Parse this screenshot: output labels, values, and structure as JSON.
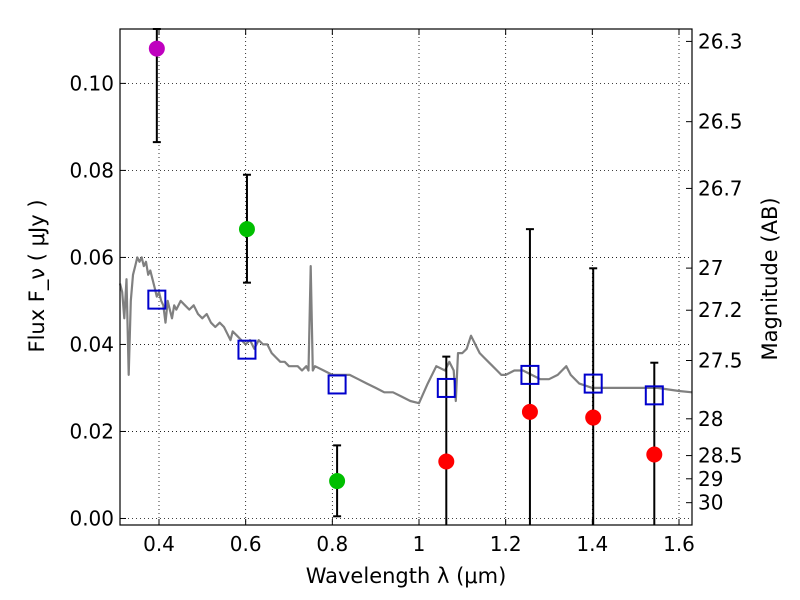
{
  "chart_data": {
    "type": "scatter",
    "xlabel": "Wavelength  λ (μm)",
    "ylabel_left": "Flux  F_ν  ( μJy )",
    "ylabel_right": "Magnitude (AB)",
    "xlim": [
      0.31,
      1.63
    ],
    "ylim": [
      -0.0015,
      0.1125
    ],
    "xticks": [
      {
        "value": 0.4,
        "label": "0.4"
      },
      {
        "value": 0.6,
        "label": "0.6"
      },
      {
        "value": 0.8,
        "label": "0.8"
      },
      {
        "value": 1.0,
        "label": "1"
      },
      {
        "value": 1.2,
        "label": "1.2"
      },
      {
        "value": 1.4,
        "label": "1.4"
      },
      {
        "value": 1.6,
        "label": "1.6"
      }
    ],
    "yticks": [
      {
        "value": 0.0,
        "label": "0.00"
      },
      {
        "value": 0.02,
        "label": "0.02"
      },
      {
        "value": 0.04,
        "label": "0.04"
      },
      {
        "value": 0.06,
        "label": "0.06"
      },
      {
        "value": 0.08,
        "label": "0.08"
      },
      {
        "value": 0.1,
        "label": "0.10"
      }
    ],
    "mag_ticks": [
      {
        "value": 26.3,
        "label": "26.3"
      },
      {
        "value": 26.5,
        "label": "26.5"
      },
      {
        "value": 26.7,
        "label": "26.7"
      },
      {
        "value": 27.0,
        "label": "27"
      },
      {
        "value": 27.2,
        "label": "27.2"
      },
      {
        "value": 27.5,
        "label": "27.5"
      },
      {
        "value": 28.0,
        "label": "28"
      },
      {
        "value": 28.5,
        "label": "28.5"
      },
      {
        "value": 29.0,
        "label": "29"
      },
      {
        "value": 30.0,
        "label": "30"
      }
    ],
    "grid": true,
    "colors": {
      "purple": "#bf00bf",
      "green": "#00bf00",
      "red": "#ff0000",
      "model": "#808080",
      "box": "#0000cc",
      "errorbar": "#000000"
    },
    "observed": [
      {
        "x": 0.395,
        "y": 0.108,
        "yerr_low": 0.0865,
        "yerr_high": 0.1125,
        "color": "purple"
      },
      {
        "x": 0.603,
        "y": 0.0665,
        "yerr_low": 0.0542,
        "yerr_high": 0.079,
        "color": "green"
      },
      {
        "x": 0.811,
        "y": 0.0086,
        "yerr_low": 0.0005,
        "yerr_high": 0.0168,
        "color": "green"
      },
      {
        "x": 1.063,
        "y": 0.0131,
        "yerr_low": -0.002,
        "yerr_high": 0.0372,
        "color": "red"
      },
      {
        "x": 1.256,
        "y": 0.0245,
        "yerr_low": -0.002,
        "yerr_high": 0.0665,
        "color": "red"
      },
      {
        "x": 1.402,
        "y": 0.0232,
        "yerr_low": -0.002,
        "yerr_high": 0.0575,
        "color": "red"
      },
      {
        "x": 1.543,
        "y": 0.0147,
        "yerr_low": -0.002,
        "yerr_high": 0.0358,
        "color": "red"
      }
    ],
    "model_photometry": [
      {
        "x": 0.395,
        "y": 0.0503
      },
      {
        "x": 0.603,
        "y": 0.0388
      },
      {
        "x": 0.811,
        "y": 0.0308
      },
      {
        "x": 1.063,
        "y": 0.03
      },
      {
        "x": 1.256,
        "y": 0.033
      },
      {
        "x": 1.402,
        "y": 0.031
      },
      {
        "x": 1.543,
        "y": 0.0283
      }
    ],
    "model_spectrum": [
      [
        0.31,
        0.054
      ],
      [
        0.315,
        0.052
      ],
      [
        0.32,
        0.046
      ],
      [
        0.325,
        0.055
      ],
      [
        0.33,
        0.033
      ],
      [
        0.335,
        0.05
      ],
      [
        0.34,
        0.056
      ],
      [
        0.345,
        0.058
      ],
      [
        0.35,
        0.06
      ],
      [
        0.355,
        0.059
      ],
      [
        0.36,
        0.06
      ],
      [
        0.365,
        0.058
      ],
      [
        0.37,
        0.059
      ],
      [
        0.375,
        0.056
      ],
      [
        0.38,
        0.057
      ],
      [
        0.385,
        0.055
      ],
      [
        0.39,
        0.053
      ],
      [
        0.395,
        0.051
      ],
      [
        0.4,
        0.052
      ],
      [
        0.405,
        0.05
      ],
      [
        0.41,
        0.049
      ],
      [
        0.415,
        0.045
      ],
      [
        0.42,
        0.05
      ],
      [
        0.425,
        0.048
      ],
      [
        0.43,
        0.046
      ],
      [
        0.435,
        0.049
      ],
      [
        0.44,
        0.048
      ],
      [
        0.45,
        0.05
      ],
      [
        0.46,
        0.049
      ],
      [
        0.47,
        0.048
      ],
      [
        0.48,
        0.049
      ],
      [
        0.49,
        0.047
      ],
      [
        0.5,
        0.046
      ],
      [
        0.51,
        0.047
      ],
      [
        0.52,
        0.045
      ],
      [
        0.53,
        0.044
      ],
      [
        0.54,
        0.045
      ],
      [
        0.55,
        0.044
      ],
      [
        0.56,
        0.042
      ],
      [
        0.565,
        0.041
      ],
      [
        0.57,
        0.043
      ],
      [
        0.58,
        0.042
      ],
      [
        0.59,
        0.041
      ],
      [
        0.6,
        0.04
      ],
      [
        0.61,
        0.041
      ],
      [
        0.62,
        0.039
      ],
      [
        0.63,
        0.041
      ],
      [
        0.64,
        0.04
      ],
      [
        0.65,
        0.04
      ],
      [
        0.66,
        0.038
      ],
      [
        0.67,
        0.037
      ],
      [
        0.68,
        0.036
      ],
      [
        0.69,
        0.036
      ],
      [
        0.7,
        0.035
      ],
      [
        0.71,
        0.035
      ],
      [
        0.72,
        0.035
      ],
      [
        0.73,
        0.034
      ],
      [
        0.74,
        0.035
      ],
      [
        0.745,
        0.034
      ],
      [
        0.75,
        0.058
      ],
      [
        0.755,
        0.034
      ],
      [
        0.76,
        0.035
      ],
      [
        0.78,
        0.034
      ],
      [
        0.8,
        0.033
      ],
      [
        0.82,
        0.033
      ],
      [
        0.84,
        0.033
      ],
      [
        0.86,
        0.032
      ],
      [
        0.88,
        0.031
      ],
      [
        0.9,
        0.03
      ],
      [
        0.92,
        0.029
      ],
      [
        0.94,
        0.029
      ],
      [
        0.96,
        0.028
      ],
      [
        0.98,
        0.027
      ],
      [
        1.0,
        0.0265
      ],
      [
        1.02,
        0.031
      ],
      [
        1.04,
        0.035
      ],
      [
        1.06,
        0.034
      ],
      [
        1.07,
        0.036
      ],
      [
        1.08,
        0.034
      ],
      [
        1.085,
        0.027
      ],
      [
        1.09,
        0.038
      ],
      [
        1.1,
        0.038
      ],
      [
        1.11,
        0.039
      ],
      [
        1.12,
        0.042
      ],
      [
        1.13,
        0.04
      ],
      [
        1.14,
        0.038
      ],
      [
        1.15,
        0.037
      ],
      [
        1.16,
        0.036
      ],
      [
        1.17,
        0.035
      ],
      [
        1.18,
        0.034
      ],
      [
        1.19,
        0.033
      ],
      [
        1.2,
        0.033
      ],
      [
        1.22,
        0.034
      ],
      [
        1.24,
        0.034
      ],
      [
        1.26,
        0.033
      ],
      [
        1.28,
        0.032
      ],
      [
        1.3,
        0.032
      ],
      [
        1.32,
        0.033
      ],
      [
        1.33,
        0.034
      ],
      [
        1.34,
        0.035
      ],
      [
        1.35,
        0.033
      ],
      [
        1.37,
        0.031
      ],
      [
        1.4,
        0.03
      ],
      [
        1.45,
        0.03
      ],
      [
        1.5,
        0.03
      ],
      [
        1.55,
        0.03
      ],
      [
        1.6,
        0.0293
      ],
      [
        1.63,
        0.029
      ]
    ]
  }
}
